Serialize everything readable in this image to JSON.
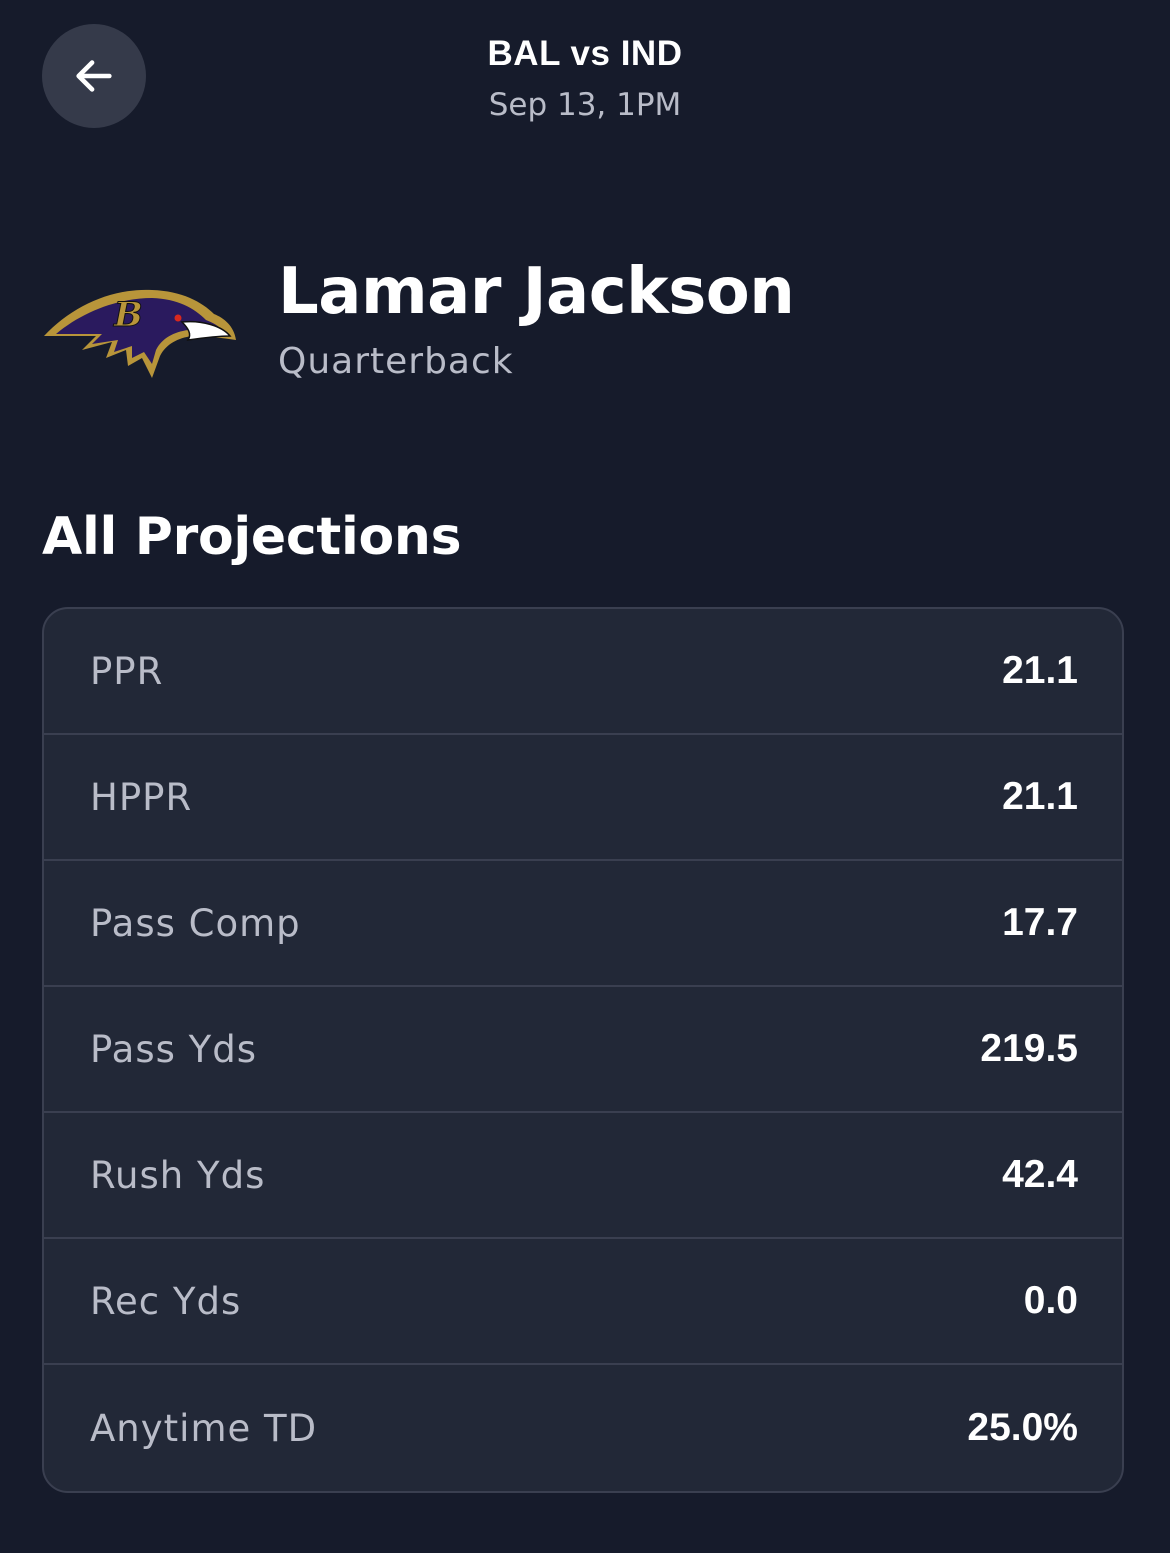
{
  "header": {
    "matchup": "BAL vs IND",
    "game_time": "Sep 13, 1PM"
  },
  "back_button": {
    "icon": "arrow-left-icon"
  },
  "player": {
    "name": "Lamar Jackson",
    "position": "Quarterback",
    "team_logo": "ravens-logo"
  },
  "projections": {
    "title": "All Projections",
    "rows": [
      {
        "label": "PPR",
        "value": "21.1"
      },
      {
        "label": "HPPR",
        "value": "21.1"
      },
      {
        "label": "Pass Comp",
        "value": "17.7"
      },
      {
        "label": "Pass Yds",
        "value": "219.5"
      },
      {
        "label": "Rush Yds",
        "value": "42.4"
      },
      {
        "label": "Rec Yds",
        "value": "0.0"
      },
      {
        "label": "Anytime TD",
        "value": "25.0%"
      }
    ]
  },
  "colors": {
    "background": "#161b2b",
    "card": "#222837",
    "border": "#3a3f50",
    "secondary_text": "#b9bcc8",
    "ravens_purple": "#2a1a5e",
    "ravens_gold": "#b8953a"
  }
}
